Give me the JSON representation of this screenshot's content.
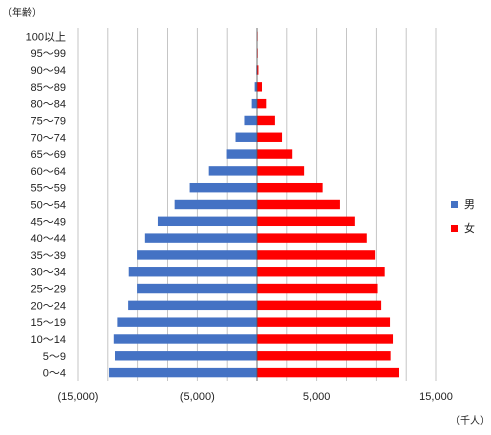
{
  "chart_data": {
    "type": "bar",
    "orientation": "horizontal",
    "subtype": "population-pyramid",
    "y_unit_label": "（年齢）",
    "x_unit_label": "（千人）",
    "categories": [
      "100以上",
      "95～99",
      "90～94",
      "85～89",
      "80～84",
      "75～79",
      "70～74",
      "65～69",
      "60～64",
      "55～59",
      "50～54",
      "45～49",
      "40～44",
      "35～39",
      "30～34",
      "25～29",
      "20～24",
      "15～19",
      "10～14",
      "5～9",
      "0～4"
    ],
    "series": [
      {
        "name": "男",
        "color": "#4472C4",
        "values": [
          10,
          20,
          60,
          200,
          450,
          1050,
          1800,
          2550,
          4050,
          5650,
          6900,
          8300,
          9400,
          10050,
          10750,
          10050,
          10800,
          11700,
          12000,
          11900,
          12400
        ]
      },
      {
        "name": "女",
        "color": "#FF0000",
        "values": [
          40,
          60,
          120,
          420,
          780,
          1500,
          2100,
          2950,
          3950,
          5500,
          6950,
          8200,
          9200,
          9900,
          10700,
          10100,
          10400,
          11150,
          11400,
          11200,
          11900
        ]
      }
    ],
    "x_ticks": [
      "(15,000)",
      "(5,000)",
      "5,000",
      "15,000"
    ],
    "x_tick_values": [
      -15000,
      -5000,
      5000,
      15000
    ],
    "xlim": [
      -15000,
      15000
    ],
    "grid": true,
    "gridline_step": 2500,
    "legend_position": "right"
  }
}
